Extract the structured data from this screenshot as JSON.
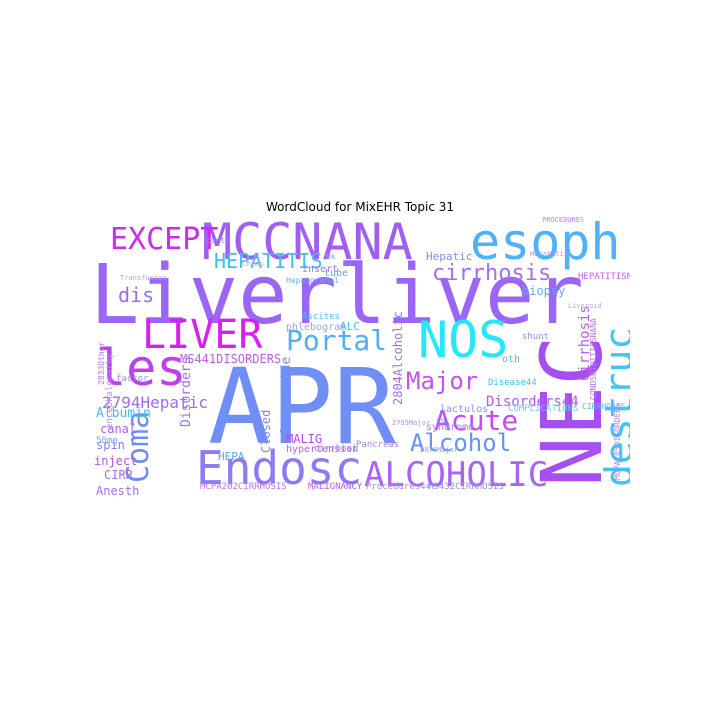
{
  "title": "WordCloud for MixEHR Topic 31",
  "chart_data": {
    "type": "wordcloud",
    "title": "WordCloud for MixEHR Topic 31",
    "colormap": "cool",
    "words": [
      {
        "text": "APR",
        "color": "#6f8ff7"
      },
      {
        "text": "Liverliver",
        "color": "#9b65f5"
      },
      {
        "text": "NEC",
        "color": "#a64ef2"
      },
      {
        "text": "MCCNANA",
        "color": "#a15ff2"
      },
      {
        "text": "esoph",
        "color": "#4fb0fb"
      },
      {
        "text": "NOS",
        "color": "#22e8fa"
      },
      {
        "text": "Endosc",
        "color": "#8c7bf5"
      },
      {
        "text": "les",
        "color": "#c13cf0"
      },
      {
        "text": "destruc",
        "color": "#3fc3fc"
      },
      {
        "text": "LIVER",
        "color": "#d91ef0"
      },
      {
        "text": "ALCOHOLIC",
        "color": "#a964f5"
      },
      {
        "text": "EXCEPT",
        "color": "#d028f0"
      },
      {
        "text": "Coma",
        "color": "#6d8ef5"
      },
      {
        "text": "Portal",
        "color": "#50aefa"
      },
      {
        "text": "Acute",
        "color": "#c949f5"
      },
      {
        "text": "Alcohol",
        "color": "#6395f7"
      },
      {
        "text": "Major",
        "color": "#c652f2"
      },
      {
        "text": "cirrhosis",
        "color": "#a56ef5"
      },
      {
        "text": "HEPATITIS",
        "color": "#3dc0fa"
      },
      {
        "text": "dis",
        "color": "#9270f5"
      },
      {
        "text": "2794Hepatic",
        "color": "#9e6bf5"
      },
      {
        "text": "Disorders44",
        "color": "#b15cf5"
      },
      {
        "text": "Cirrhosis",
        "color": "#b95bf5"
      },
      {
        "text": "Albumin",
        "color": "#44bcfa"
      },
      {
        "text": "canal",
        "color": "#b15ff5"
      },
      {
        "text": "spin",
        "color": "#7a85f5"
      },
      {
        "text": "inject",
        "color": "#b557f5"
      },
      {
        "text": "CIRR",
        "color": "#a46ff5"
      },
      {
        "text": "Anesth",
        "color": "#9e70f5"
      },
      {
        "text": "Closed",
        "color": "#8583f5"
      },
      {
        "text": "Octreotide",
        "color": "#6f8ff7"
      },
      {
        "text": "HEPA",
        "color": "#5aa6f7"
      },
      {
        "text": "MALIG",
        "color": "#c047f2"
      },
      {
        "text": "Disorders",
        "color": "#9a72f5"
      },
      {
        "text": "MS441DISORDERS",
        "color": "#c05cf5"
      },
      {
        "text": "2804Alcoholic",
        "color": "#a06cf5"
      },
      {
        "text": "ALC",
        "color": "#3cc3fa"
      },
      {
        "text": "biopsy",
        "color": "#66a2f7"
      },
      {
        "text": "hypertension",
        "color": "#c35af5"
      },
      {
        "text": "tube",
        "color": "#6aa2f7"
      },
      {
        "text": "Hepatic",
        "color": "#7a8ef5"
      },
      {
        "text": "insert",
        "color": "#8b7cf5"
      },
      {
        "text": "phlebogram",
        "color": "#9aa0f5"
      },
      {
        "text": "lactulos",
        "color": "#8d8ff5"
      },
      {
        "text": "syndrome",
        "color": "#a085f5"
      },
      {
        "text": "shunt",
        "color": "#9090f5"
      },
      {
        "text": "oth",
        "color": "#5fb0f7"
      },
      {
        "text": "Disease44",
        "color": "#3dc3fa"
      },
      {
        "text": "COMPLICATIONS",
        "color": "#70c8fa"
      },
      {
        "text": "MALIGNANCY",
        "color": "#b65cf5"
      },
      {
        "text": "Procedures44",
        "color": "#aa88f5"
      },
      {
        "text": "MS432CIRRHOSIS",
        "color": "#9a8df5"
      },
      {
        "text": "MCPA202CIRRHOSIS",
        "color": "#c070f5"
      },
      {
        "text": "CIRRHOSIS",
        "color": "#3ec5fa"
      },
      {
        "text": "HEPATITISNANA",
        "color": "#c85cf5"
      },
      {
        "text": "PROCEDURES",
        "color": "#c47cf5"
      },
      {
        "text": "CONDSDIDITIESNANA",
        "color": "#c070f5"
      },
      {
        "text": "MCPA205DISORDERS",
        "color": "#b880f5"
      },
      {
        "text": "factor",
        "color": "#9a8ff5"
      },
      {
        "text": "50mg",
        "color": "#8da0f5"
      },
      {
        "text": "cirrhosi",
        "color": "#9b7af5"
      },
      {
        "text": "Pancreas",
        "color": "#a188f5"
      },
      {
        "text": "0k",
        "color": "#8aa6f5"
      },
      {
        "text": "2795Major",
        "color": "#b290f5"
      },
      {
        "text": "2833Other",
        "color": "#c070f5"
      },
      {
        "text": "encephalopathy",
        "color": "#b795f5"
      },
      {
        "text": "Ascites",
        "color": "#4bc0fa"
      },
      {
        "text": "2870Major",
        "color": "#9a99f5"
      },
      {
        "text": "contr",
        "color": "#8a96f5"
      },
      {
        "text": "Hepatorenal",
        "color": "#6aa8f7"
      },
      {
        "text": "Hepatitis",
        "color": "#c688f5"
      },
      {
        "text": "Chron",
        "color": "#c595f5"
      },
      {
        "text": "sg",
        "color": "#6aa2f7"
      },
      {
        "text": "Transfusion",
        "color": "#b8a0f5"
      },
      {
        "text": "Liveroid",
        "color": "#bca0f5"
      }
    ]
  }
}
